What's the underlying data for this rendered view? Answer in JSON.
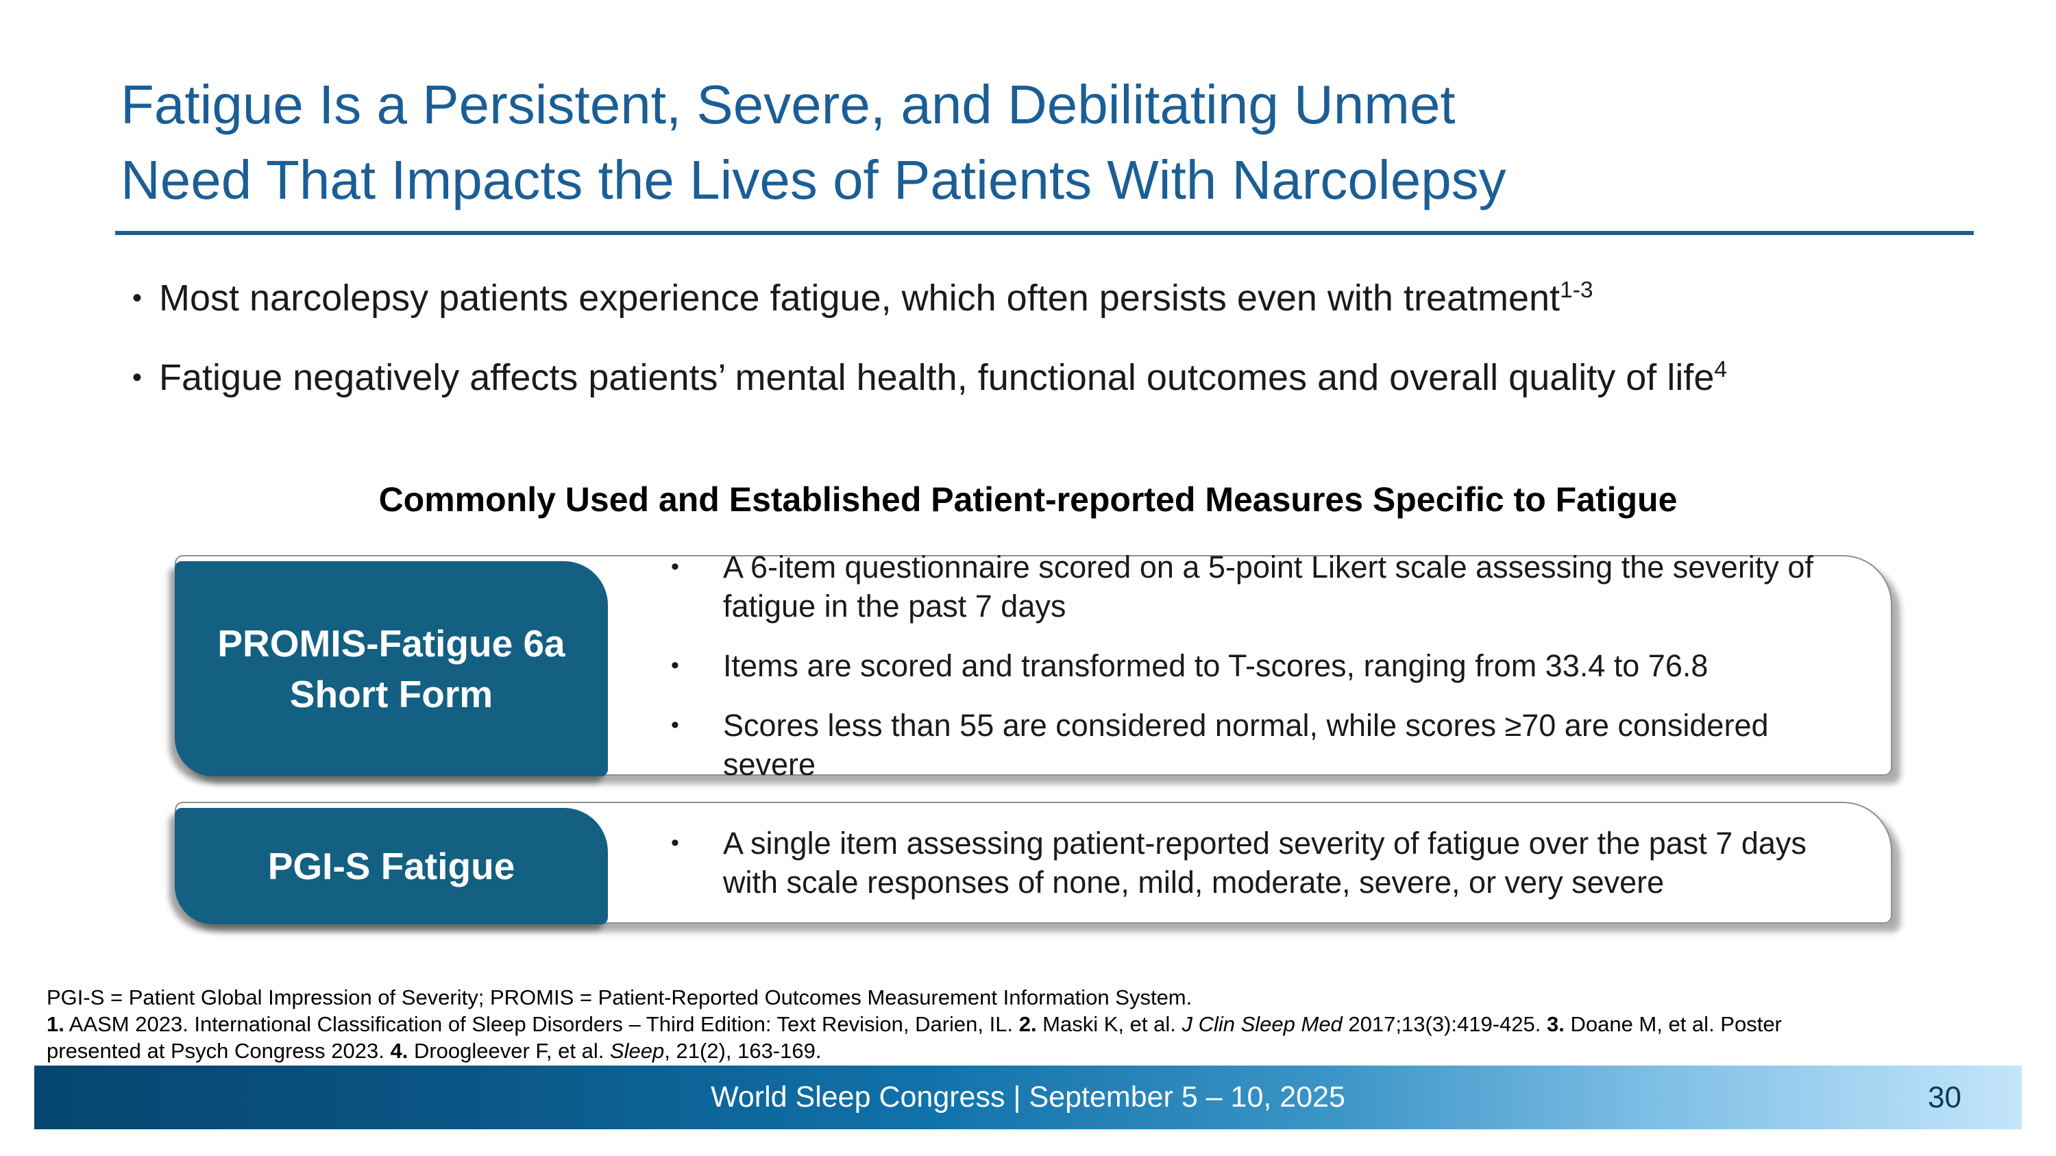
{
  "slide": {
    "title": {
      "line1": "Fatigue Is a Persistent, Severe, and Debilitating Unmet",
      "line2": "Need That Impacts the Lives of Patients With Narcolepsy"
    },
    "bullets": [
      {
        "segments": [
          {
            "t": "Most narcolepsy patients experience fatigue, which often persists even with treatment"
          },
          {
            "t": "1-3",
            "sup": true
          }
        ]
      },
      {
        "segments": [
          {
            "t": "Fatigue negatively affects patients’ mental health, functional outcomes and overall quality of life"
          },
          {
            "t": "4",
            "sup": true
          }
        ]
      }
    ],
    "section_heading": "Commonly Used and Established Patient-reported Measures Specific to Fatigue",
    "measures": [
      {
        "label_lines": [
          "PROMIS-Fatigue 6a",
          "Short Form"
        ],
        "points": [
          "A 6-item questionnaire scored on a 5-point Likert scale assessing the severity of fatigue in the past 7 days",
          "Items are scored and transformed to T-scores, ranging from 33.4 to 76.8",
          "Scores less than 55 are considered normal, while scores ≥70 are considered severe"
        ]
      },
      {
        "label_lines": [
          "PGI-S Fatigue"
        ],
        "points": [
          "A single item assessing patient-reported severity of fatigue over the past 7 days with scale responses of none, mild, moderate, severe, or very severe"
        ]
      }
    ],
    "footnotes": [
      [
        {
          "t": "PGI-S = Patient Global Impression of Severity; PROMIS = Patient-Reported Outcomes Measurement Information System."
        }
      ],
      [
        {
          "t": "1.",
          "b": true
        },
        {
          "t": " AASM 2023. International Classification of Sleep Disorders – Third Edition: Text Revision, Darien, IL. "
        },
        {
          "t": "2.",
          "b": true
        },
        {
          "t": " Maski K, et al. "
        },
        {
          "t": "J Clin Sleep Med",
          "i": true
        },
        {
          "t": " 2017;13(3):419-425. "
        },
        {
          "t": "3.",
          "b": true
        },
        {
          "t": " Doane M, et al. Poster"
        }
      ],
      [
        {
          "t": "presented at Psych Congress 2023. "
        },
        {
          "t": "4.",
          "b": true
        },
        {
          "t": " Droogleever F, et al. "
        },
        {
          "t": "Sleep",
          "i": true
        },
        {
          "t": ", 21(2), 163-169."
        }
      ]
    ],
    "footer": {
      "text": "World Sleep Congress | September 5 – 10, 2025",
      "page_number": "30"
    },
    "colors": {
      "title_blue": "#1b5e96",
      "teal_label": "#136082",
      "footer_gradient_start": "#05466f",
      "footer_gradient_end": "#c4e5fa",
      "page_number_navy": "#0e3a5a"
    }
  }
}
